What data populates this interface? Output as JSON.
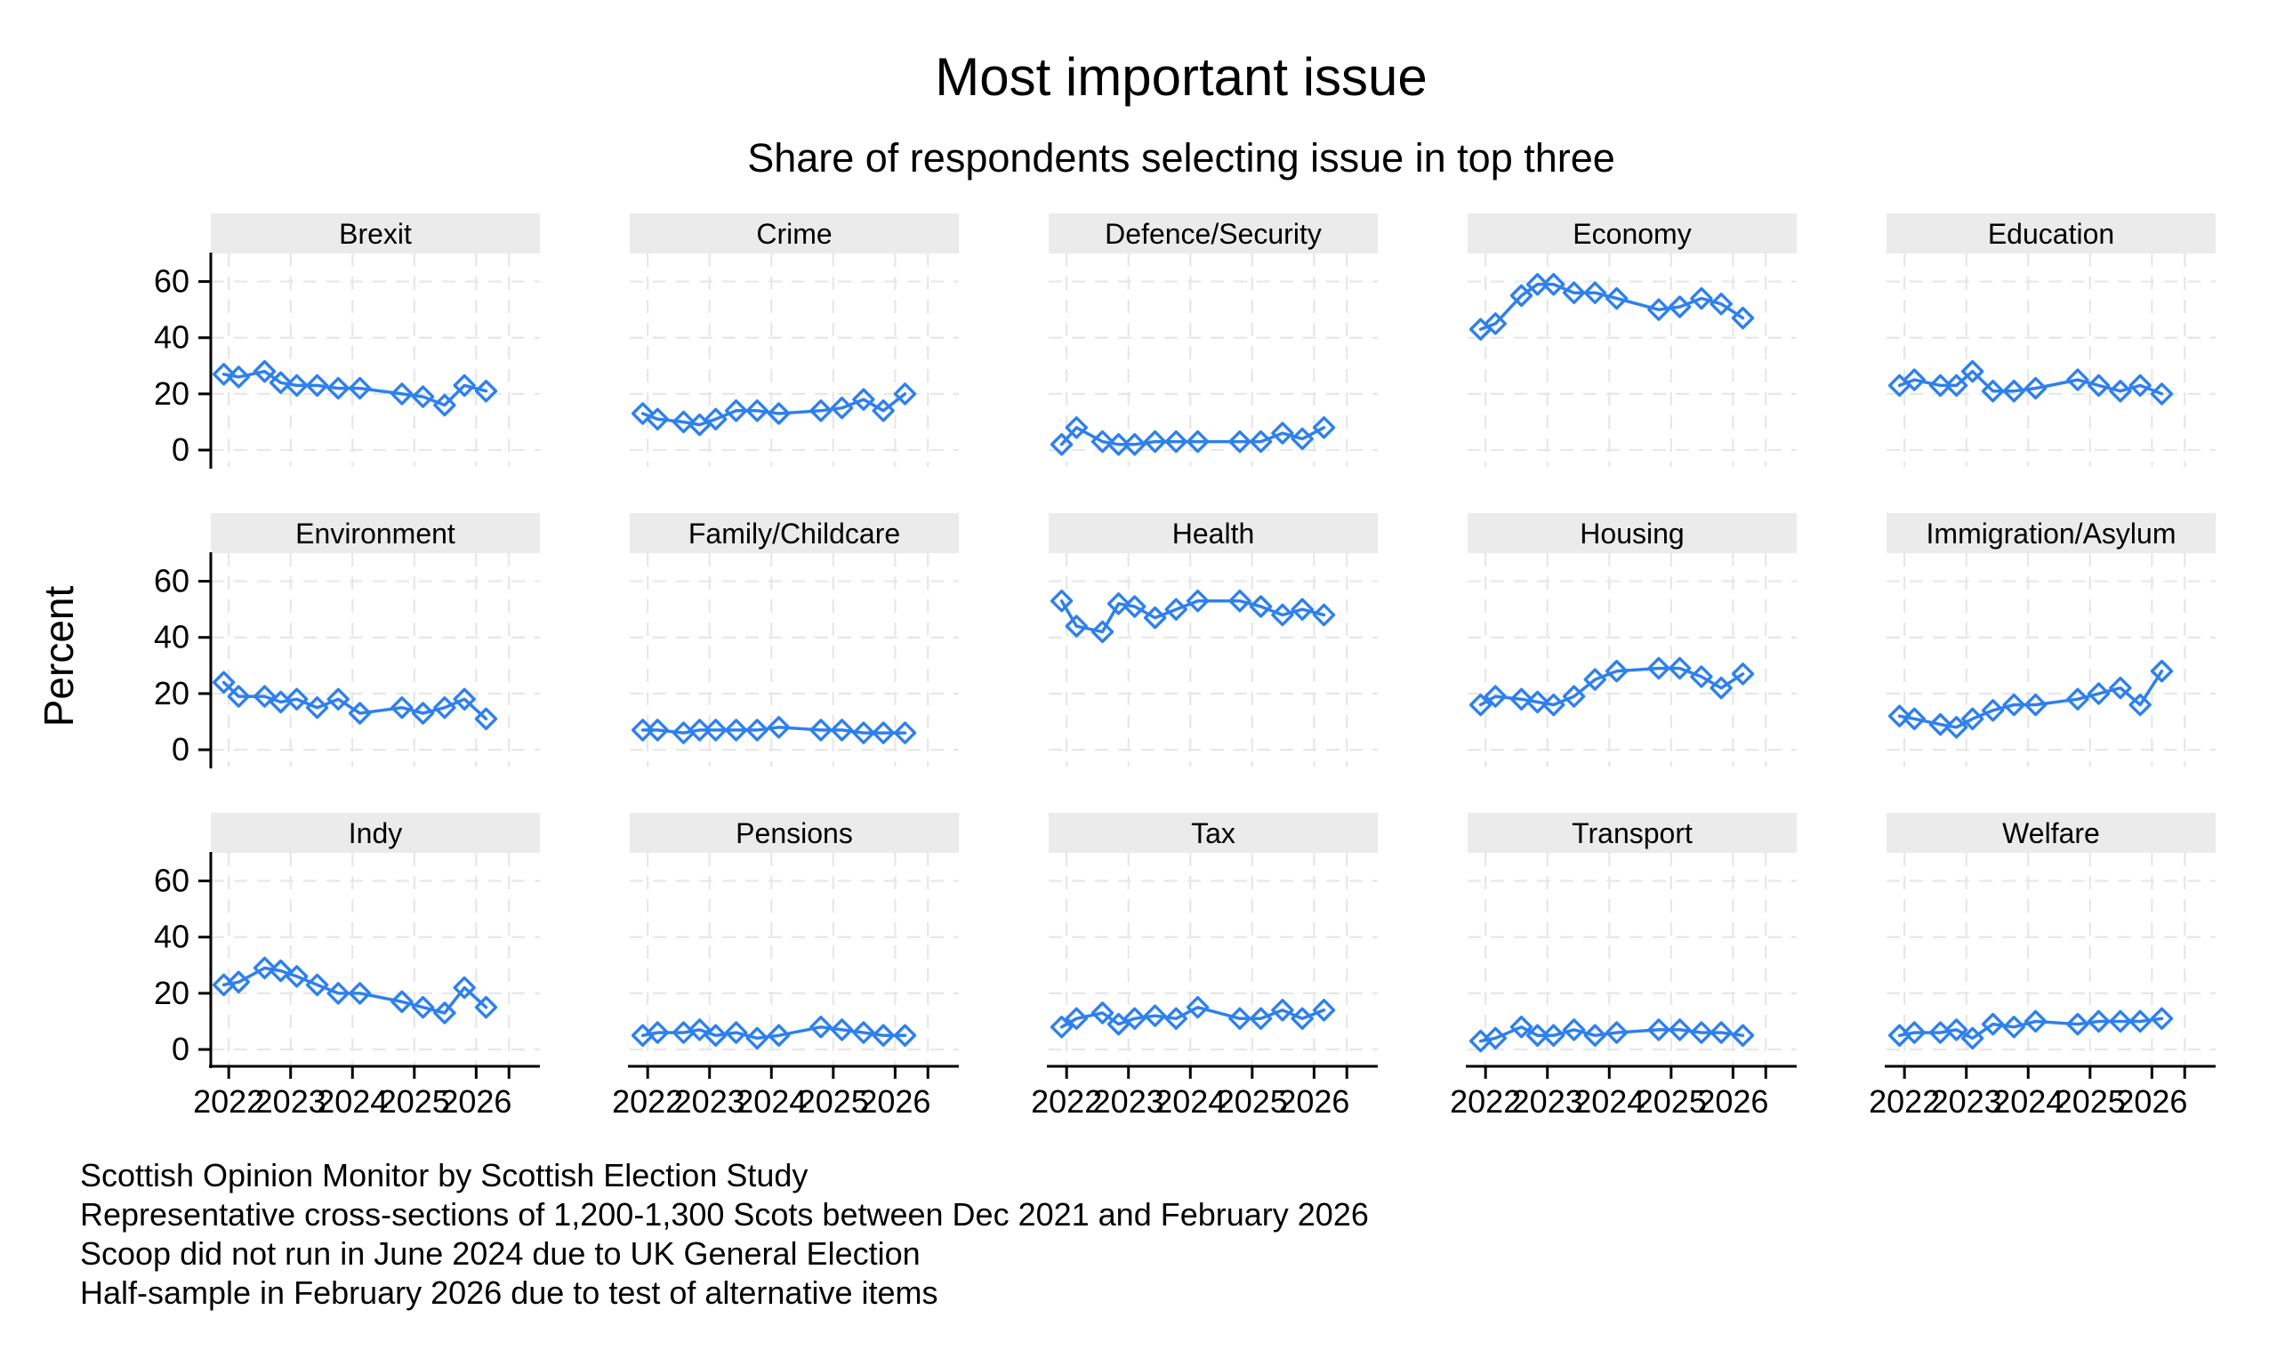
{
  "title": "Most important issue",
  "subtitle": "Share of respondents selecting issue in top three",
  "notes": [
    "Scottish Opinion Monitor by Scottish Election Study",
    "Representative cross-sections of 1,200-1,300 Scots between Dec 2021 and February 2026",
    "Scoop did not run in June 2024 due to UK General Election",
    "Half-sample in February 2026 due to test of alternative items"
  ],
  "chart_data": {
    "type": "line",
    "layout": "small-multiples",
    "grid_rows": 3,
    "grid_cols": 5,
    "ylabel": "Percent",
    "x_years": [
      2021.92,
      2022.16,
      2022.58,
      2022.84,
      2023.1,
      2023.43,
      2023.77,
      2024.12,
      2024.8,
      2025.14,
      2025.49,
      2025.81,
      2026.16
    ],
    "x_ticks": [
      2022,
      2023,
      2024,
      2025,
      2026
    ],
    "x_tick_labels": [
      "2022",
      "2023",
      "2024",
      "2025",
      "2026"
    ],
    "x_minor_ticks": [
      2026.53
    ],
    "y_ticks": [
      0,
      20,
      40,
      60
    ],
    "y_tick_labels": [
      "0",
      "20",
      "40",
      "60"
    ],
    "y_axis_range_shown": [
      -6,
      70
    ],
    "grid": "dashed",
    "marker": "hollow-diamond",
    "line_color": "#2e80ec",
    "grid_color": "#e7e7e7",
    "axis_color": "#000000",
    "panel_header_bg": "#ebebeb",
    "panels": [
      {
        "title": "Brexit",
        "values": [
          27,
          26,
          28,
          24,
          23,
          23,
          22,
          22,
          20,
          19,
          16,
          23,
          21
        ]
      },
      {
        "title": "Crime",
        "values": [
          13,
          11,
          10,
          9,
          11,
          14,
          14,
          13,
          14,
          15,
          18,
          14,
          20
        ]
      },
      {
        "title": "Defence/Security",
        "values": [
          2,
          8,
          3,
          2,
          2,
          3,
          3,
          3,
          3,
          3,
          6,
          4,
          8
        ]
      },
      {
        "title": "Economy",
        "values": [
          43,
          45,
          55,
          59,
          59,
          56,
          56,
          54,
          50,
          51,
          54,
          52,
          47
        ]
      },
      {
        "title": "Education",
        "values": [
          23,
          25,
          23,
          23,
          28,
          21,
          21,
          22,
          25,
          23,
          21,
          23,
          20
        ]
      },
      {
        "title": "Environment",
        "values": [
          24,
          19,
          19,
          17,
          18,
          15,
          18,
          13,
          15,
          13,
          15,
          18,
          11
        ]
      },
      {
        "title": "Family/Childcare",
        "values": [
          7,
          7,
          6,
          7,
          7,
          7,
          7,
          8,
          7,
          7,
          6,
          6,
          6
        ]
      },
      {
        "title": "Health",
        "values": [
          53,
          44,
          42,
          52,
          51,
          47,
          50,
          53,
          53,
          51,
          48,
          50,
          48
        ]
      },
      {
        "title": "Housing",
        "values": [
          16,
          19,
          18,
          17,
          16,
          19,
          25,
          28,
          29,
          29,
          26,
          22,
          27
        ]
      },
      {
        "title": "Immigration/Asylum",
        "values": [
          12,
          11,
          9,
          8,
          11,
          14,
          16,
          16,
          18,
          20,
          22,
          16,
          28
        ]
      },
      {
        "title": "Indy",
        "values": [
          23,
          24,
          29,
          28,
          26,
          23,
          20,
          20,
          17,
          15,
          13,
          22,
          15
        ]
      },
      {
        "title": "Pensions",
        "values": [
          5,
          6,
          6,
          7,
          5,
          6,
          4,
          5,
          8,
          7,
          6,
          5,
          5
        ]
      },
      {
        "title": "Tax",
        "values": [
          8,
          11,
          13,
          9,
          11,
          12,
          11,
          15,
          11,
          11,
          14,
          11,
          14
        ]
      },
      {
        "title": "Transport",
        "values": [
          3,
          4,
          8,
          5,
          5,
          7,
          5,
          6,
          7,
          7,
          6,
          6,
          5
        ]
      },
      {
        "title": "Welfare",
        "values": [
          5,
          6,
          6,
          7,
          4,
          9,
          8,
          10,
          9,
          10,
          10,
          10,
          11
        ]
      }
    ]
  }
}
